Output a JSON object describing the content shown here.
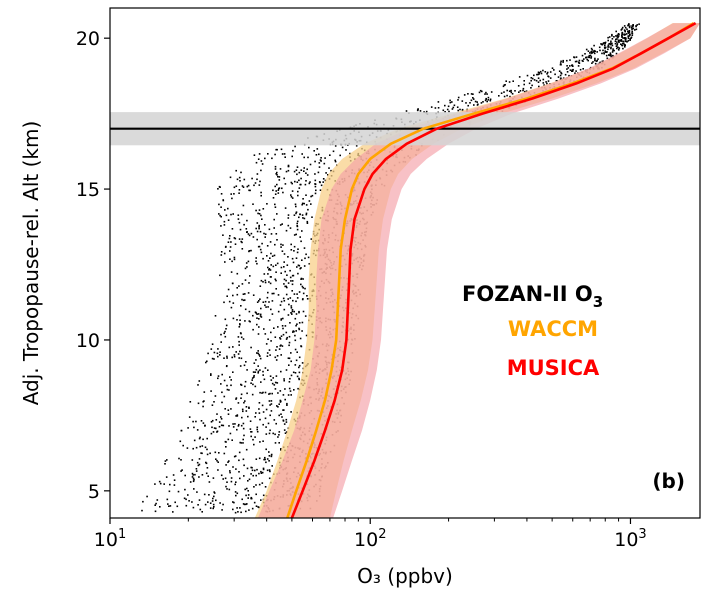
{
  "chart_data": {
    "type": "line",
    "xlabel": "O₃ (ppbv)",
    "ylabel": "Adj. Tropopause-rel. Alt (km)",
    "x_scale": "log",
    "xlim": [
      10,
      1850
    ],
    "ylim": [
      4.1,
      21.0
    ],
    "x_ticks": [
      {
        "value": 10,
        "base": "10",
        "exp": "1"
      },
      {
        "value": 100,
        "base": "10",
        "exp": "2"
      },
      {
        "value": 1000,
        "base": "10",
        "exp": "3"
      }
    ],
    "y_ticks": [
      5,
      10,
      15,
      20
    ],
    "panel_label": "(b)",
    "tropopause_line": {
      "y": 17.0,
      "band": [
        16.45,
        17.55
      ],
      "color": "#000000",
      "band_color": "#d3d3d3"
    },
    "legend": [
      {
        "text": "FOZAN-II O",
        "subscript": "3",
        "color": "#000000"
      },
      {
        "text": "WACCM",
        "color": "#ffa500"
      },
      {
        "text": "MUSICA",
        "color": "#ff0000"
      }
    ],
    "series": [
      {
        "name": "WACCM",
        "color": "#ffa500",
        "band_color": "#f8d08a",
        "y": [
          4.1,
          5,
          6,
          7,
          8,
          9,
          10,
          11,
          12,
          13,
          14,
          15,
          15.5,
          16,
          16.5,
          17,
          17.5,
          18,
          18.5,
          19,
          19.5,
          20,
          20.5
        ],
        "x": [
          48,
          52,
          57,
          62,
          67,
          71,
          74,
          75,
          76,
          77,
          80,
          85,
          90,
          100,
          120,
          160,
          250,
          400,
          600,
          850,
          1100,
          1400,
          1750
        ],
        "lower": [
          36,
          40,
          44,
          48,
          52,
          55,
          57,
          58,
          58,
          59,
          61,
          65,
          69,
          78,
          95,
          128,
          205,
          330,
          490,
          700,
          910,
          1160,
          1450
        ],
        "upper": [
          70,
          74,
          79,
          85,
          92,
          98,
          102,
          104,
          106,
          108,
          112,
          120,
          128,
          145,
          175,
          225,
          320,
          500,
          740,
          1030,
          1330,
          1700,
          1850
        ]
      },
      {
        "name": "MUSICA",
        "color": "#ff0000",
        "band_color": "#f4a0a8",
        "y": [
          4.1,
          5,
          6,
          7,
          8,
          9,
          10,
          11,
          12,
          13,
          14,
          15,
          15.5,
          16,
          16.5,
          17,
          17.5,
          18,
          18.5,
          19,
          19.5,
          20,
          20.5
        ],
        "x": [
          50,
          55,
          61,
          67,
          73,
          78,
          81,
          82,
          83,
          84,
          87,
          95,
          102,
          115,
          138,
          180,
          270,
          420,
          620,
          860,
          1100,
          1400,
          1780
        ],
        "lower": [
          37,
          41,
          46,
          51,
          55,
          59,
          61,
          62,
          62,
          63,
          65,
          71,
          77,
          88,
          105,
          140,
          215,
          335,
          495,
          690,
          900,
          1150,
          1460
        ],
        "upper": [
          72,
          78,
          85,
          93,
          100,
          106,
          110,
          112,
          114,
          116,
          121,
          132,
          143,
          165,
          200,
          255,
          350,
          530,
          770,
          1050,
          1350,
          1700,
          1850
        ]
      }
    ],
    "scatter": {
      "name": "FOZAN-II O3",
      "color": "#000000",
      "envelope": {
        "y": [
          4.3,
          5,
          6,
          7,
          8,
          9,
          10,
          11,
          12,
          13,
          14,
          15,
          15.5,
          16,
          16.5,
          17,
          17.5,
          18,
          18.5,
          19,
          19.5,
          20,
          20.5
        ],
        "lower": [
          12,
          14,
          16,
          18,
          20,
          22,
          24,
          25,
          26,
          26,
          26,
          25,
          27,
          32,
          45,
          70,
          115,
          190,
          300,
          450,
          620,
          800,
          950
        ],
        "upper": [
          62,
          64,
          70,
          75,
          80,
          85,
          88,
          90,
          92,
          95,
          100,
          110,
          120,
          140,
          170,
          215,
          300,
          420,
          580,
          760,
          900,
          1000,
          1080
        ]
      }
    }
  }
}
